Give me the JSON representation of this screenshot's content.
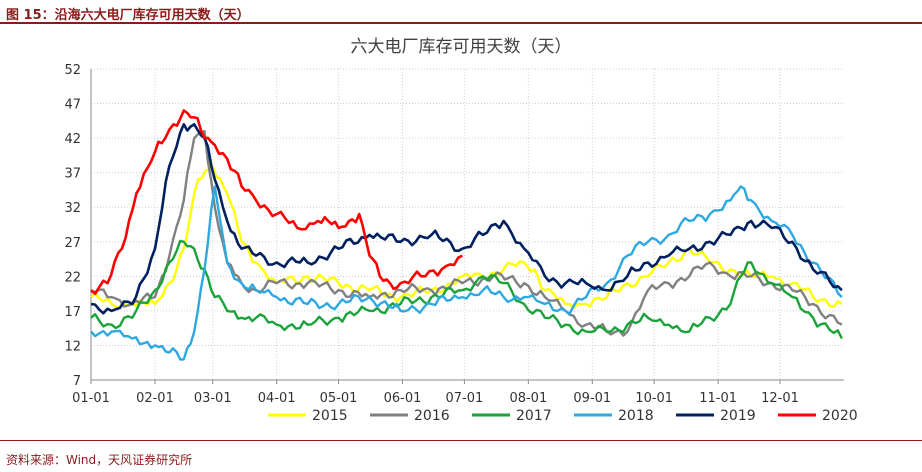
{
  "figure_label": "图 15：沿海六大电厂库存可用天数（天）",
  "source_note": "资料来源：Wind，天风证券研究所",
  "chart_data": {
    "type": "line",
    "title": "六大电厂库存可用天数（天）",
    "xlabel": "",
    "ylabel": "",
    "x_ticks": [
      "01-01",
      "02-01",
      "03-01",
      "04-01",
      "05-01",
      "06-01",
      "07-01",
      "08-01",
      "09-01",
      "10-01",
      "11-01",
      "12-01"
    ],
    "y_ticks": [
      7,
      12,
      17,
      22,
      27,
      32,
      37,
      42,
      47,
      52
    ],
    "ylim": [
      7,
      52
    ],
    "xlim_days": [
      0,
      365
    ],
    "grid": "dotted",
    "legend_position": "bottom",
    "series": [
      {
        "name": "2015",
        "color": "#FFFF00",
        "x": [
          0,
          10,
          20,
          31,
          38,
          45,
          52,
          59,
          66,
          73,
          80,
          90,
          105,
          120,
          135,
          150,
          165,
          175,
          180,
          190,
          200,
          210,
          215,
          220,
          230,
          240,
          250,
          260,
          270,
          280,
          290,
          300,
          310,
          320,
          330,
          340,
          350,
          364
        ],
        "y": [
          19,
          18,
          18,
          18,
          21,
          26,
          36,
          38,
          34,
          27,
          24,
          21,
          22,
          21,
          20,
          19,
          20,
          21,
          22,
          22,
          23,
          24,
          23,
          20,
          18,
          18,
          19,
          21,
          22,
          24,
          26,
          24,
          23,
          22,
          22,
          21,
          19,
          18
        ]
      },
      {
        "name": "2016",
        "color": "#808080",
        "x": [
          0,
          10,
          20,
          31,
          38,
          45,
          50,
          55,
          60,
          66,
          73,
          80,
          90,
          105,
          120,
          135,
          150,
          165,
          180,
          195,
          210,
          220,
          230,
          240,
          250,
          260,
          270,
          280,
          290,
          300,
          310,
          320,
          330,
          340,
          350,
          364
        ],
        "y": [
          20,
          19,
          18,
          19,
          25,
          33,
          42,
          43,
          32,
          24,
          21,
          20,
          21,
          21,
          20,
          19,
          20,
          20,
          21,
          22,
          21,
          19,
          17,
          15,
          14,
          14,
          20,
          21,
          22,
          24,
          22,
          22,
          21,
          20,
          18,
          15
        ]
      },
      {
        "name": "2017",
        "color": "#1AA33A",
        "x": [
          0,
          10,
          20,
          31,
          38,
          45,
          50,
          55,
          60,
          66,
          73,
          80,
          90,
          105,
          120,
          135,
          150,
          165,
          180,
          190,
          200,
          210,
          220,
          230,
          240,
          250,
          260,
          270,
          280,
          290,
          300,
          310,
          315,
          320,
          330,
          340,
          350,
          364
        ],
        "y": [
          16,
          15,
          16,
          20,
          24,
          27,
          26,
          23,
          19,
          17,
          16,
          16,
          15,
          15,
          16,
          17,
          18,
          19,
          20,
          22,
          21,
          18,
          16,
          15,
          14,
          14,
          15,
          16,
          15,
          14,
          16,
          18,
          22,
          24,
          21,
          19,
          16,
          13
        ]
      },
      {
        "name": "2018",
        "color": "#2EA8E0",
        "x": [
          0,
          10,
          20,
          31,
          38,
          45,
          50,
          55,
          60,
          66,
          73,
          80,
          90,
          105,
          120,
          135,
          150,
          165,
          180,
          190,
          200,
          210,
          220,
          230,
          240,
          250,
          260,
          270,
          280,
          290,
          300,
          310,
          315,
          320,
          330,
          340,
          350,
          364
        ],
        "y": [
          14,
          14,
          13,
          12,
          11,
          10,
          14,
          23,
          35,
          24,
          21,
          20,
          19,
          18,
          18,
          19,
          17,
          18,
          19,
          20,
          19,
          19,
          18,
          17,
          19,
          21,
          25,
          27,
          28,
          30,
          31,
          33,
          35,
          33,
          30,
          28,
          24,
          19
        ]
      },
      {
        "name": "2019",
        "color": "#002060",
        "x": [
          0,
          10,
          20,
          31,
          38,
          45,
          50,
          55,
          60,
          66,
          73,
          80,
          90,
          105,
          120,
          135,
          150,
          165,
          180,
          190,
          200,
          210,
          220,
          230,
          240,
          250,
          260,
          270,
          280,
          290,
          300,
          310,
          315,
          320,
          330,
          340,
          350,
          364
        ],
        "y": [
          18,
          17,
          18,
          26,
          38,
          44,
          44,
          42,
          36,
          30,
          26,
          25,
          24,
          24,
          26,
          28,
          27,
          28,
          26,
          28,
          30,
          26,
          22,
          21,
          21,
          20,
          22,
          24,
          25,
          26,
          27,
          28,
          29,
          30,
          29,
          27,
          23,
          20
        ]
      },
      {
        "name": "2020",
        "color": "#FF0000",
        "x": [
          0,
          8,
          15,
          22,
          31,
          36,
          40,
          45,
          50,
          55,
          60,
          66,
          73,
          80,
          90,
          100,
          110,
          115,
          120,
          125,
          130,
          135,
          140,
          145,
          150,
          160,
          170,
          180
        ],
        "y": [
          20,
          21,
          26,
          34,
          40,
          42,
          44,
          46,
          45,
          42,
          41,
          39,
          35,
          33,
          31,
          29,
          30,
          30,
          29,
          30,
          31,
          25,
          22,
          21,
          21,
          22,
          23,
          25
        ]
      }
    ]
  }
}
